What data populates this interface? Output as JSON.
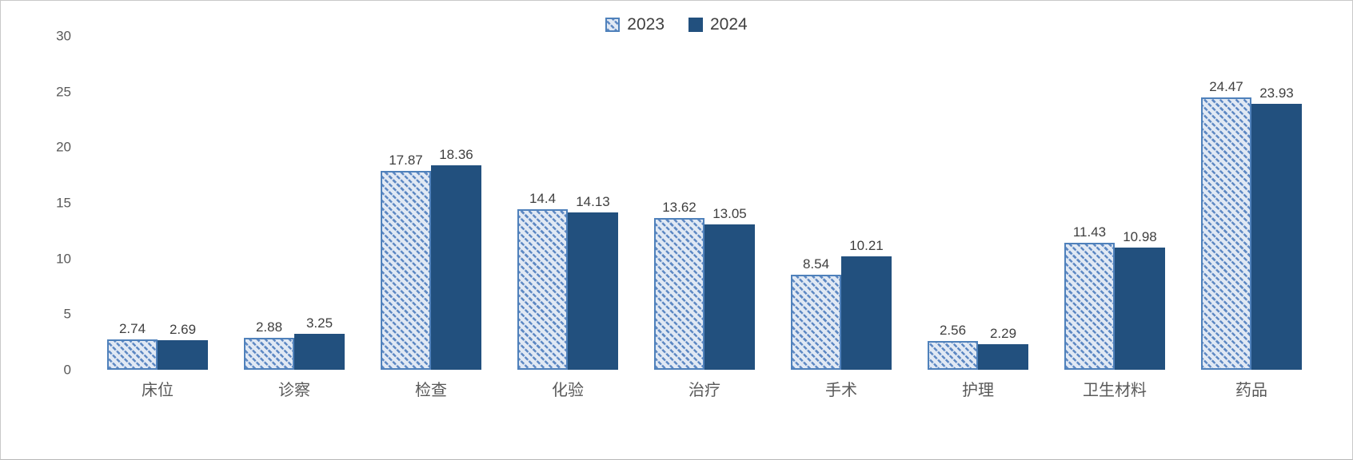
{
  "legend": {
    "items": [
      {
        "label": "2023",
        "swatch": "hatched"
      },
      {
        "label": "2024",
        "swatch": "solid"
      }
    ]
  },
  "chart_data": {
    "type": "bar",
    "title": "",
    "xlabel": "",
    "ylabel": "",
    "categories": [
      "床位",
      "诊察",
      "检查",
      "化验",
      "治疗",
      "手术",
      "护理",
      "卫生材料",
      "药品"
    ],
    "series": [
      {
        "name": "2023",
        "values": [
          2.74,
          2.88,
          17.87,
          14.4,
          13.62,
          8.54,
          2.56,
          11.43,
          24.47
        ]
      },
      {
        "name": "2024",
        "values": [
          2.69,
          3.25,
          18.36,
          14.13,
          13.05,
          10.21,
          2.29,
          10.98,
          23.93
        ]
      }
    ],
    "ylim": [
      0,
      30
    ],
    "yticks": [
      0,
      5,
      10,
      15,
      20,
      25,
      30
    ],
    "grid": false,
    "legend_position": "top-center",
    "data_labels": true
  },
  "colors": {
    "series_2023_fill": "#e1e9f4",
    "series_2023_hatch": "#5d88c3",
    "series_2023_border": "#4f81bb",
    "series_2024_fill": "#22507e",
    "value_label_text": "#3f3f3f",
    "axis_text": "#595959",
    "frame_border": "#c9c9c9"
  }
}
